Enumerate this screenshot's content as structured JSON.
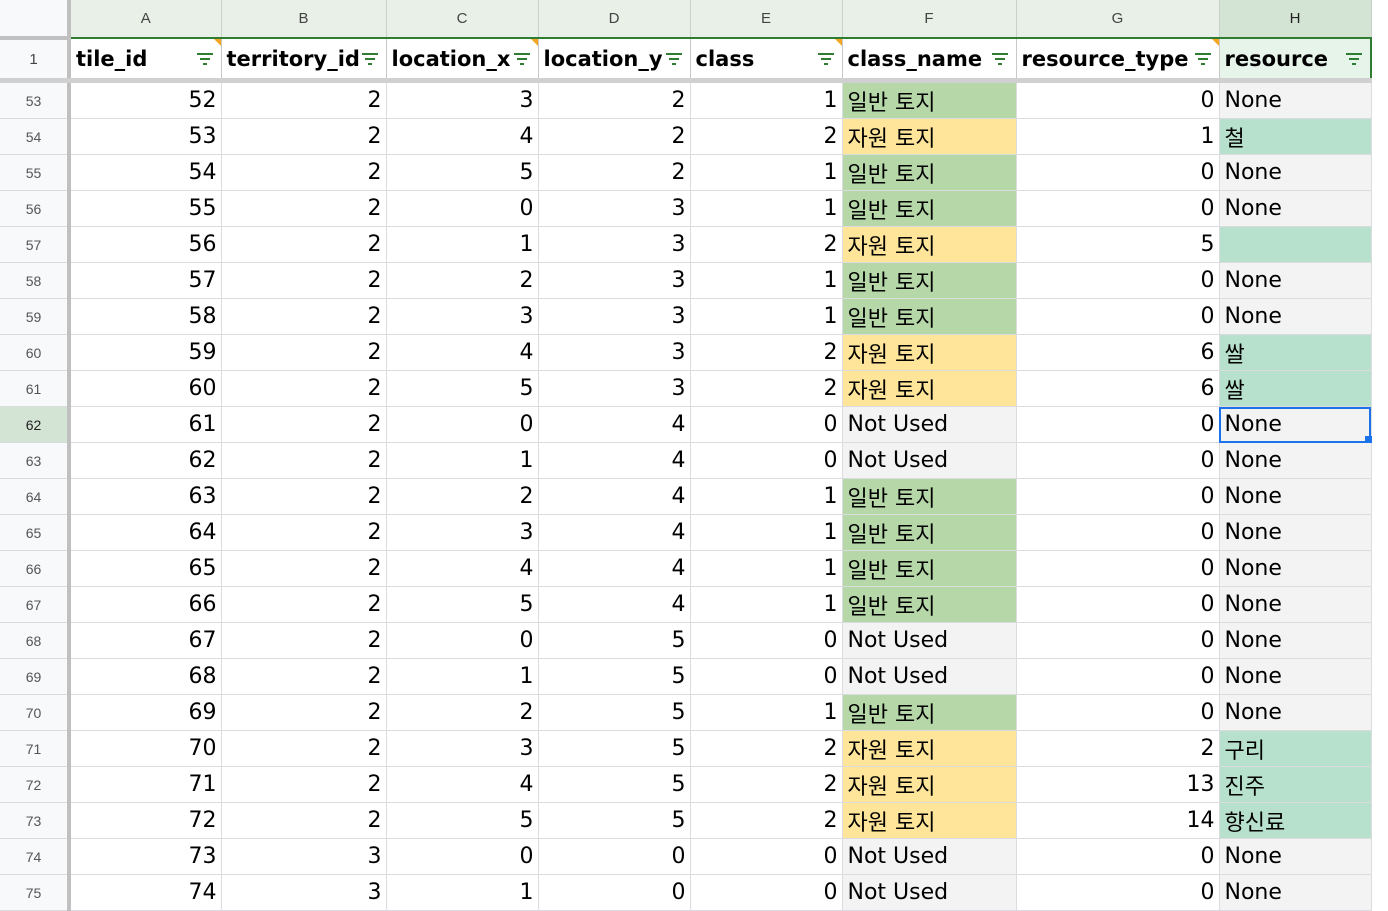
{
  "columns": [
    "A",
    "B",
    "C",
    "D",
    "E",
    "F",
    "G",
    "H"
  ],
  "header_row_number": "1",
  "headers": [
    "tile_id",
    "territory_id",
    "location_x",
    "location_y",
    "class",
    "class_name",
    "resource_type",
    "resource"
  ],
  "rows": [
    {
      "rownum": "53",
      "tile_id": "52",
      "territory_id": "2",
      "location_x": "3",
      "location_y": "2",
      "class": "1",
      "class_name": "일반 토지",
      "resource_type": "0",
      "resource": "None"
    },
    {
      "rownum": "54",
      "tile_id": "53",
      "territory_id": "2",
      "location_x": "4",
      "location_y": "2",
      "class": "2",
      "class_name": "자원 토지",
      "resource_type": "1",
      "resource": "철"
    },
    {
      "rownum": "55",
      "tile_id": "54",
      "territory_id": "2",
      "location_x": "5",
      "location_y": "2",
      "class": "1",
      "class_name": "일반 토지",
      "resource_type": "0",
      "resource": "None"
    },
    {
      "rownum": "56",
      "tile_id": "55",
      "territory_id": "2",
      "location_x": "0",
      "location_y": "3",
      "class": "1",
      "class_name": "일반 토지",
      "resource_type": "0",
      "resource": "None"
    },
    {
      "rownum": "57",
      "tile_id": "56",
      "territory_id": "2",
      "location_x": "1",
      "location_y": "3",
      "class": "2",
      "class_name": "자원 토지",
      "resource_type": "5",
      "resource": ""
    },
    {
      "rownum": "58",
      "tile_id": "57",
      "territory_id": "2",
      "location_x": "2",
      "location_y": "3",
      "class": "1",
      "class_name": "일반 토지",
      "resource_type": "0",
      "resource": "None"
    },
    {
      "rownum": "59",
      "tile_id": "58",
      "territory_id": "2",
      "location_x": "3",
      "location_y": "3",
      "class": "1",
      "class_name": "일반 토지",
      "resource_type": "0",
      "resource": "None"
    },
    {
      "rownum": "60",
      "tile_id": "59",
      "territory_id": "2",
      "location_x": "4",
      "location_y": "3",
      "class": "2",
      "class_name": "자원 토지",
      "resource_type": "6",
      "resource": "쌀"
    },
    {
      "rownum": "61",
      "tile_id": "60",
      "territory_id": "2",
      "location_x": "5",
      "location_y": "3",
      "class": "2",
      "class_name": "자원 토지",
      "resource_type": "6",
      "resource": "쌀"
    },
    {
      "rownum": "62",
      "tile_id": "61",
      "territory_id": "2",
      "location_x": "0",
      "location_y": "4",
      "class": "0",
      "class_name": "Not Used",
      "resource_type": "0",
      "resource": "None"
    },
    {
      "rownum": "63",
      "tile_id": "62",
      "territory_id": "2",
      "location_x": "1",
      "location_y": "4",
      "class": "0",
      "class_name": "Not Used",
      "resource_type": "0",
      "resource": "None"
    },
    {
      "rownum": "64",
      "tile_id": "63",
      "territory_id": "2",
      "location_x": "2",
      "location_y": "4",
      "class": "1",
      "class_name": "일반 토지",
      "resource_type": "0",
      "resource": "None"
    },
    {
      "rownum": "65",
      "tile_id": "64",
      "territory_id": "2",
      "location_x": "3",
      "location_y": "4",
      "class": "1",
      "class_name": "일반 토지",
      "resource_type": "0",
      "resource": "None"
    },
    {
      "rownum": "66",
      "tile_id": "65",
      "territory_id": "2",
      "location_x": "4",
      "location_y": "4",
      "class": "1",
      "class_name": "일반 토지",
      "resource_type": "0",
      "resource": "None"
    },
    {
      "rownum": "67",
      "tile_id": "66",
      "territory_id": "2",
      "location_x": "5",
      "location_y": "4",
      "class": "1",
      "class_name": "일반 토지",
      "resource_type": "0",
      "resource": "None"
    },
    {
      "rownum": "68",
      "tile_id": "67",
      "territory_id": "2",
      "location_x": "0",
      "location_y": "5",
      "class": "0",
      "class_name": "Not Used",
      "resource_type": "0",
      "resource": "None"
    },
    {
      "rownum": "69",
      "tile_id": "68",
      "territory_id": "2",
      "location_x": "1",
      "location_y": "5",
      "class": "0",
      "class_name": "Not Used",
      "resource_type": "0",
      "resource": "None"
    },
    {
      "rownum": "70",
      "tile_id": "69",
      "territory_id": "2",
      "location_x": "2",
      "location_y": "5",
      "class": "1",
      "class_name": "일반 토지",
      "resource_type": "0",
      "resource": "None"
    },
    {
      "rownum": "71",
      "tile_id": "70",
      "territory_id": "2",
      "location_x": "3",
      "location_y": "5",
      "class": "2",
      "class_name": "자원 토지",
      "resource_type": "2",
      "resource": "구리"
    },
    {
      "rownum": "72",
      "tile_id": "71",
      "territory_id": "2",
      "location_x": "4",
      "location_y": "5",
      "class": "2",
      "class_name": "자원 토지",
      "resource_type": "13",
      "resource": "진주"
    },
    {
      "rownum": "73",
      "tile_id": "72",
      "territory_id": "2",
      "location_x": "5",
      "location_y": "5",
      "class": "2",
      "class_name": "자원 토지",
      "resource_type": "14",
      "resource": "향신료"
    },
    {
      "rownum": "74",
      "tile_id": "73",
      "territory_id": "3",
      "location_x": "0",
      "location_y": "0",
      "class": "0",
      "class_name": "Not Used",
      "resource_type": "0",
      "resource": "None"
    },
    {
      "rownum": "75",
      "tile_id": "74",
      "territory_id": "3",
      "location_x": "1",
      "location_y": "0",
      "class": "0",
      "class_name": "Not Used",
      "resource_type": "0",
      "resource": "None"
    }
  ],
  "selected_cell": {
    "column": "H",
    "row": "62"
  },
  "colors": {
    "ilban": "#b6d7a8",
    "jawon": "#ffe599",
    "not_used": "#f3f3f3",
    "resource_fill": "#b7e1cd",
    "selection": "#1a73e8",
    "header_border": "#2e7d32"
  },
  "icons": {
    "filter": "filter-icon",
    "note": "note-indicator"
  }
}
